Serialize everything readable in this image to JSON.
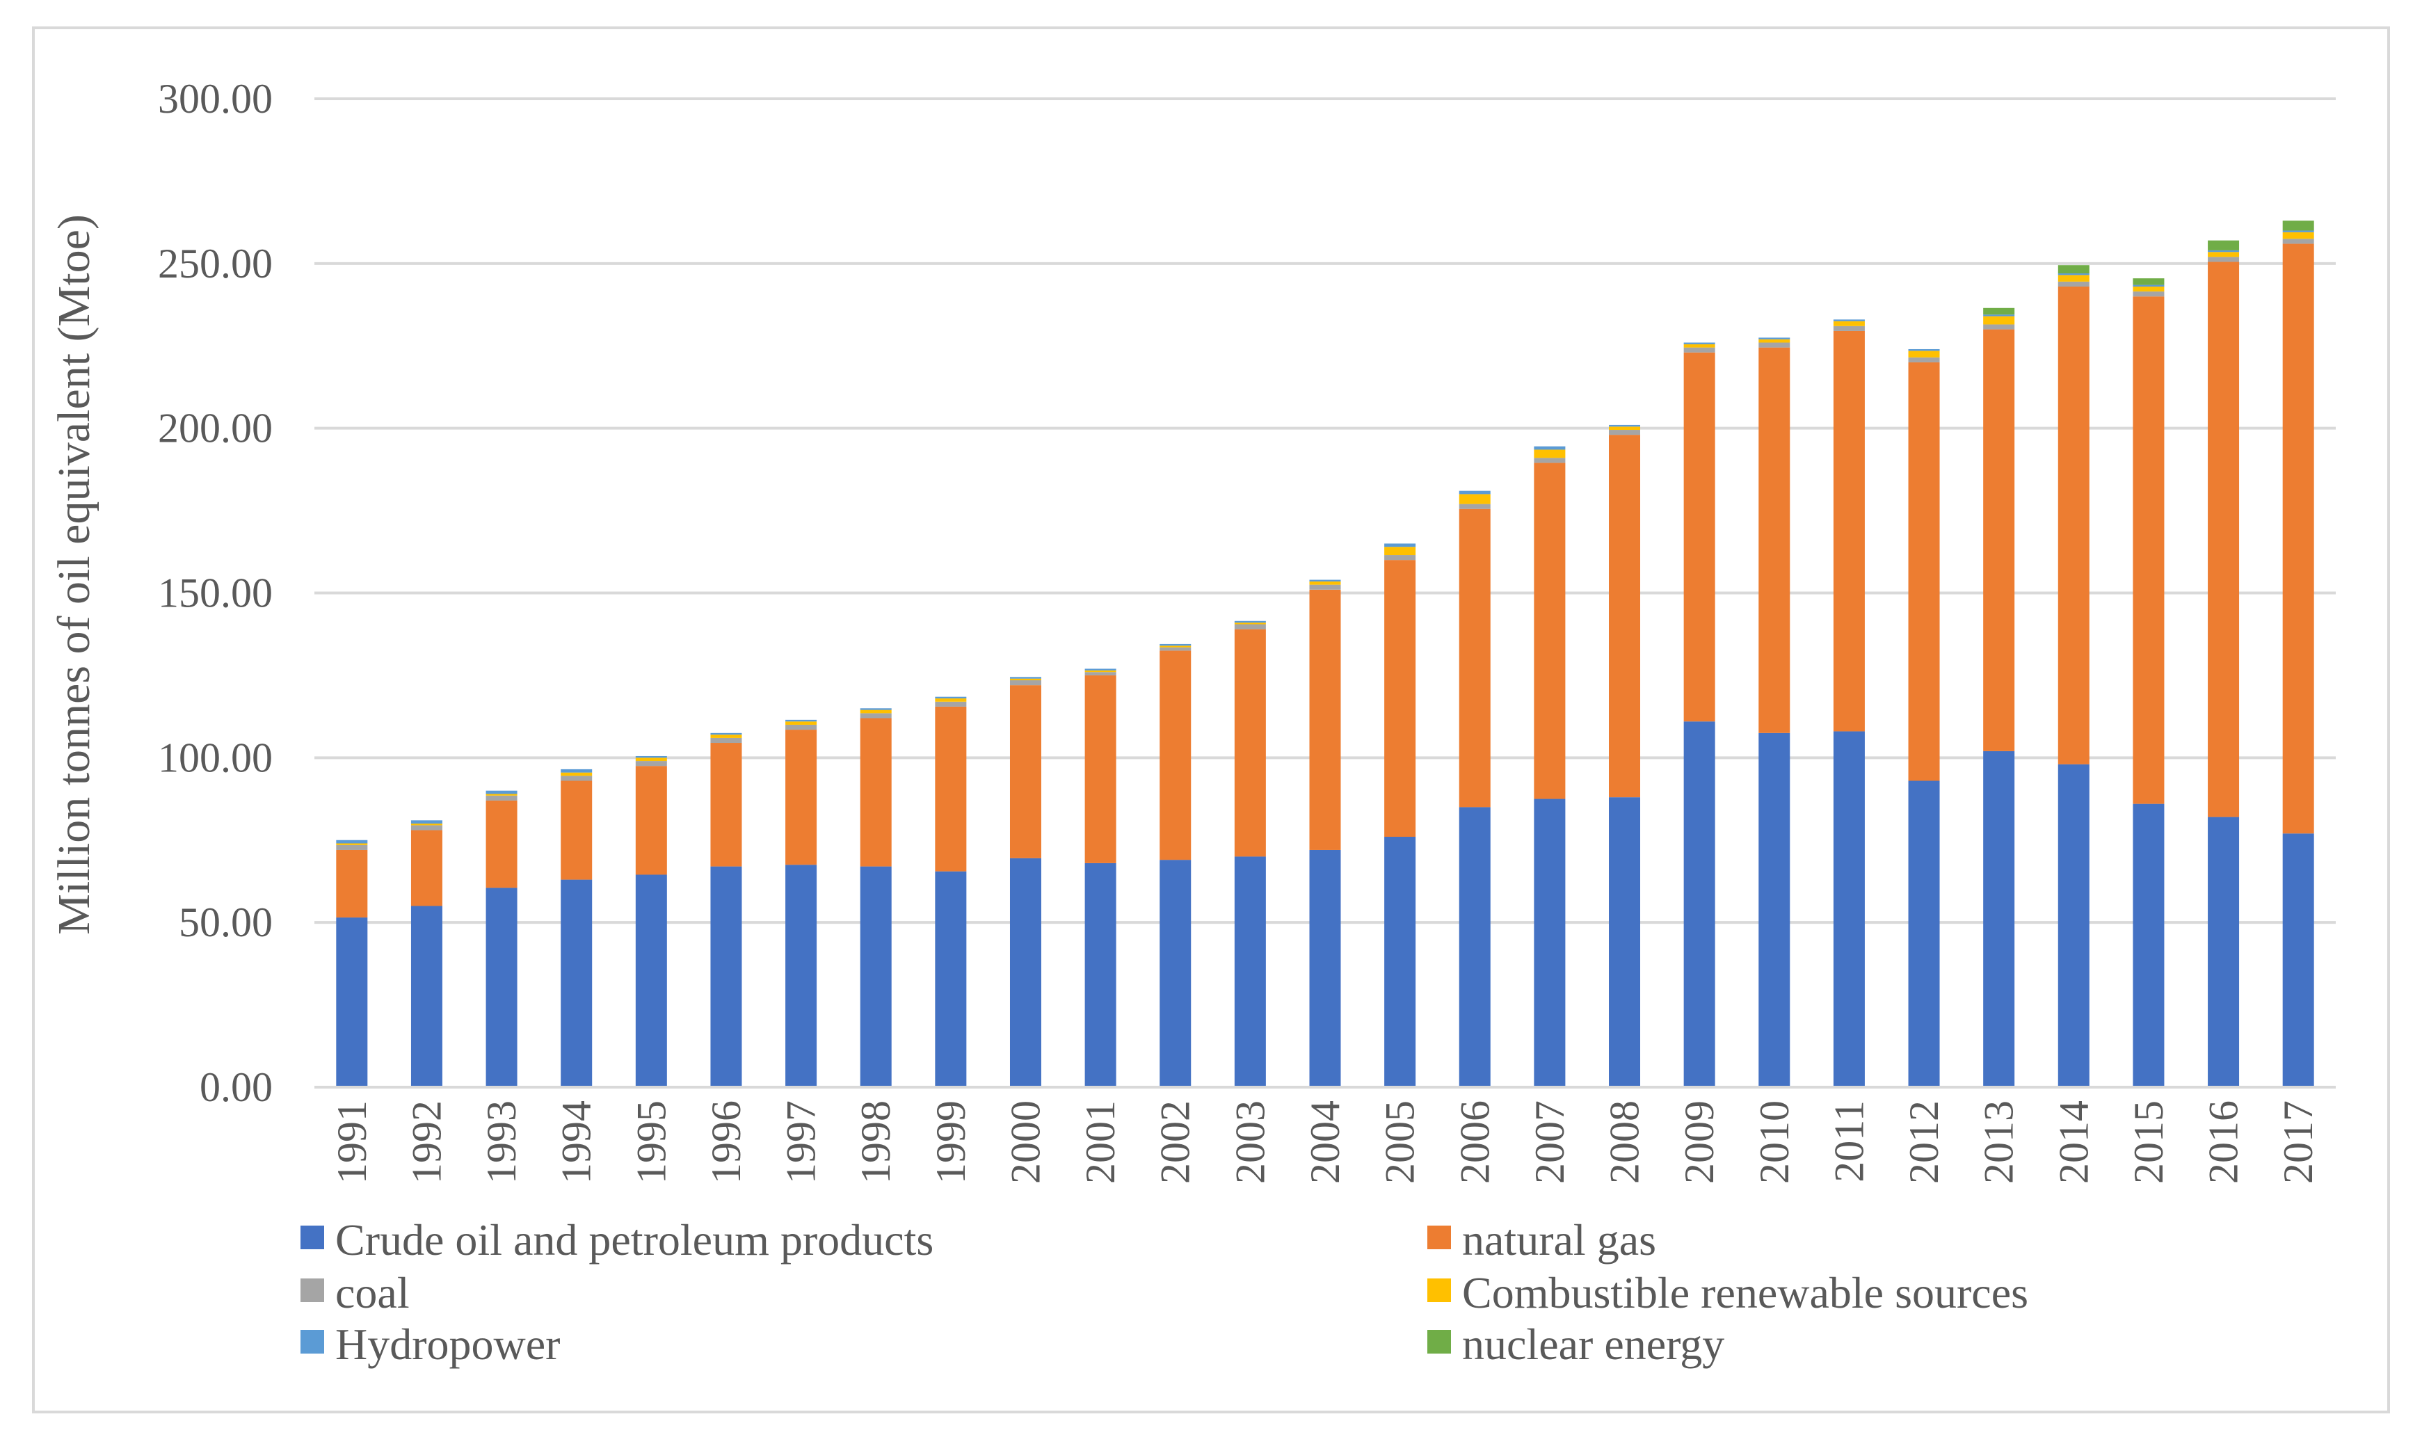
{
  "chart_data": {
    "type": "bar",
    "stacked": true,
    "title": "",
    "xlabel": "",
    "ylabel": "Million tonnes of oil equivalent (Mtoe)",
    "ylim": [
      0,
      300
    ],
    "yticks": [
      "0.00",
      "50.00",
      "100.00",
      "150.00",
      "200.00",
      "250.00",
      "300.00"
    ],
    "grid": true,
    "legend_position": "bottom",
    "categories": [
      "1991",
      "1992",
      "1993",
      "1994",
      "1995",
      "1996",
      "1997",
      "1998",
      "1999",
      "2000",
      "2001",
      "2002",
      "2003",
      "2004",
      "2005",
      "2006",
      "2007",
      "2008",
      "2009",
      "2010",
      "2011",
      "2012",
      "2013",
      "2014",
      "2015",
      "2016",
      "2017"
    ],
    "series": [
      {
        "name": "Crude oil and petroleum products",
        "color": "#4472c4",
        "values": [
          51.5,
          55,
          60.5,
          63,
          64.5,
          67,
          67.5,
          67,
          65.5,
          69.5,
          68,
          69,
          70,
          72,
          76,
          85,
          87.5,
          88,
          111,
          107.5,
          108,
          93,
          102,
          98,
          86,
          82,
          77
        ]
      },
      {
        "name": "natural gas",
        "color": "#ed7d31",
        "values": [
          20.5,
          23,
          26.5,
          30,
          33,
          37.5,
          41,
          45,
          50,
          52.5,
          57,
          63.5,
          69,
          79,
          84,
          90.5,
          102,
          110,
          112,
          117,
          121.5,
          127,
          128,
          145,
          154,
          168.5,
          179
        ]
      },
      {
        "name": "coal",
        "color": "#a5a5a5",
        "values": [
          1.5,
          1.5,
          1.5,
          1.5,
          1.5,
          1.5,
          1.5,
          1.5,
          1.5,
          1.5,
          1,
          1,
          1.5,
          1.5,
          1.5,
          1.5,
          1.5,
          1.5,
          1.5,
          1.5,
          1.5,
          1.5,
          1.5,
          1.5,
          1.5,
          1.5,
          1.5
        ]
      },
      {
        "name": "Combustible renewable sources",
        "color": "#ffc000",
        "values": [
          0.5,
          0.5,
          0.5,
          1,
          1,
          1,
          1,
          1,
          1,
          0.5,
          0.5,
          0.5,
          0.5,
          1,
          2.5,
          3,
          2.5,
          1,
          1,
          1,
          1.5,
          2,
          2.5,
          2,
          1.5,
          1.5,
          2
        ]
      },
      {
        "name": "Hydropower",
        "color": "#5b9bd5",
        "values": [
          1,
          1,
          1,
          1,
          0.5,
          0.5,
          0.5,
          0.5,
          0.5,
          0.5,
          0.5,
          0.5,
          0.5,
          0.5,
          1,
          1,
          1,
          0.5,
          0.5,
          0.5,
          0.5,
          0.5,
          0.5,
          0.5,
          0.5,
          0.5,
          0.5
        ]
      },
      {
        "name": "nuclear energy",
        "color": "#70ad47",
        "values": [
          0,
          0,
          0,
          0,
          0,
          0,
          0,
          0,
          0,
          0,
          0,
          0,
          0,
          0,
          0,
          0,
          0,
          0,
          0,
          0,
          0,
          0,
          2,
          2.5,
          2,
          3,
          3
        ]
      }
    ]
  }
}
